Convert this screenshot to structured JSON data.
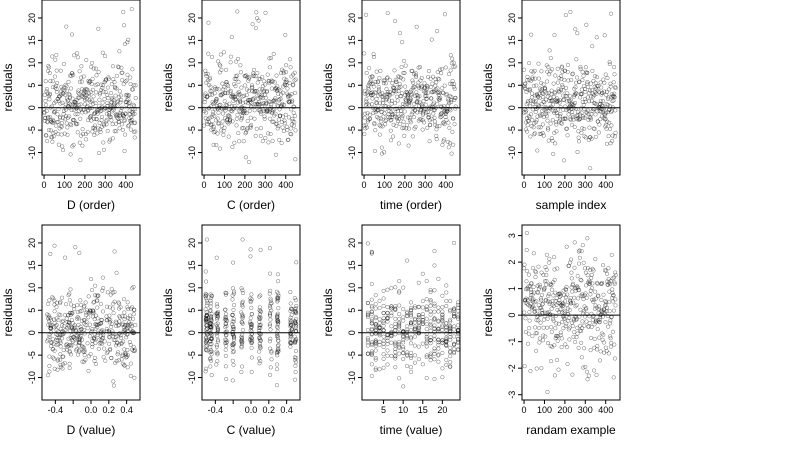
{
  "chart_data": [
    {
      "type": "scatter",
      "xlabel": "D (order)",
      "ylabel": "residuals",
      "xlim": [
        -10,
        470
      ],
      "ylim": [
        -15,
        24
      ],
      "xticks": [
        0,
        100,
        200,
        300,
        400
      ],
      "xtick_labels": [
        "0",
        "100",
        "200",
        "300",
        "400"
      ],
      "yticks": [
        -10,
        -5,
        0,
        5,
        10,
        15,
        20
      ],
      "ytick_labels": [
        "-10",
        "-5",
        "0",
        "5",
        "10",
        "15",
        "20"
      ],
      "hline": 0,
      "n_points": 450,
      "gen": {
        "dist": "index",
        "n": 450,
        "seed": 11,
        "min": 0,
        "max": 449
      }
    },
    {
      "type": "scatter",
      "xlabel": "C (order)",
      "ylabel": "residuals",
      "xlim": [
        -10,
        470
      ],
      "ylim": [
        -15,
        24
      ],
      "xticks": [
        0,
        100,
        200,
        300,
        400
      ],
      "xtick_labels": [
        "0",
        "100",
        "200",
        "300",
        "400"
      ],
      "yticks": [
        -10,
        -5,
        0,
        5,
        10,
        15,
        20
      ],
      "ytick_labels": [
        "-10",
        "-5",
        "0",
        "5",
        "10",
        "15",
        "20"
      ],
      "hline": 0,
      "n_points": 450,
      "gen": {
        "dist": "index",
        "n": 450,
        "seed": 23,
        "min": 0,
        "max": 449
      }
    },
    {
      "type": "scatter",
      "xlabel": "time (order)",
      "ylabel": "residuals",
      "xlim": [
        -10,
        470
      ],
      "ylim": [
        -15,
        24
      ],
      "xticks": [
        0,
        100,
        200,
        300,
        400
      ],
      "xtick_labels": [
        "0",
        "100",
        "200",
        "300",
        "400"
      ],
      "yticks": [
        -10,
        -5,
        0,
        5,
        10,
        15,
        20
      ],
      "ytick_labels": [
        "-10",
        "-5",
        "0",
        "5",
        "10",
        "15",
        "20"
      ],
      "hline": 0,
      "n_points": 450,
      "gen": {
        "dist": "index",
        "n": 450,
        "seed": 37,
        "min": 0,
        "max": 449
      }
    },
    {
      "type": "scatter",
      "xlabel": "sample index",
      "ylabel": "residuals",
      "xlim": [
        -10,
        470
      ],
      "ylim": [
        -15,
        24
      ],
      "xticks": [
        0,
        100,
        200,
        300,
        400
      ],
      "xtick_labels": [
        "0",
        "100",
        "200",
        "300",
        "400"
      ],
      "yticks": [
        -10,
        -5,
        0,
        5,
        10,
        15,
        20
      ],
      "ytick_labels": [
        "-10",
        "-5",
        "0",
        "5",
        "10",
        "15",
        "20"
      ],
      "hline": 0,
      "n_points": 450,
      "gen": {
        "dist": "index",
        "n": 450,
        "seed": 41,
        "min": 0,
        "max": 449
      }
    },
    {
      "type": "scatter",
      "xlabel": "D (value)",
      "ylabel": "residuals",
      "xlim": [
        -0.55,
        0.55
      ],
      "ylim": [
        -15,
        24
      ],
      "xticks": [
        -0.4,
        -0.2,
        0.0,
        0.2,
        0.4
      ],
      "xtick_labels": [
        "-0.4",
        "",
        "0.0",
        "0.2",
        "0.4"
      ],
      "yticks": [
        -10,
        -5,
        0,
        5,
        10,
        15,
        20
      ],
      "ytick_labels": [
        "-10",
        "-5",
        "0",
        "5",
        "10",
        "15",
        "20"
      ],
      "hline": 0,
      "n_points": 450,
      "gen": {
        "dist": "continuous",
        "n": 450,
        "seed": 53,
        "min": -0.5,
        "max": 0.5
      }
    },
    {
      "type": "scatter",
      "xlabel": "C (value)",
      "ylabel": "residuals",
      "xlim": [
        -0.55,
        0.55
      ],
      "ylim": [
        -15,
        24
      ],
      "xticks": [
        -0.4,
        -0.2,
        0.0,
        0.2,
        0.4
      ],
      "xtick_labels": [
        "-0.4",
        "",
        "0.0",
        "0.2",
        "0.4"
      ],
      "yticks": [
        -10,
        -5,
        0,
        5,
        10,
        15,
        20
      ],
      "ytick_labels": [
        "-10",
        "-5",
        "0",
        "5",
        "10",
        "15",
        "20"
      ],
      "hline": 0,
      "n_points": 450,
      "gen": {
        "dist": "clusters",
        "n": 450,
        "seed": 67,
        "centers": [
          -0.5,
          -0.45,
          -0.38,
          -0.28,
          -0.2,
          -0.1,
          0.0,
          0.1,
          0.22,
          0.3,
          0.45,
          0.5
        ],
        "jitter": 0.01
      }
    },
    {
      "type": "scatter",
      "xlabel": "time (value)",
      "ylabel": "residuals",
      "xlim": [
        -0.5,
        24.5
      ],
      "ylim": [
        -15,
        24
      ],
      "xticks": [
        5,
        10,
        15,
        20
      ],
      "xtick_labels": [
        "5",
        "10",
        "15",
        "20"
      ],
      "yticks": [
        -10,
        -5,
        0,
        5,
        10,
        15,
        20
      ],
      "ytick_labels": [
        "-10",
        "-5",
        "0",
        "5",
        "10",
        "15",
        "20"
      ],
      "hline": 0,
      "n_points": 450,
      "gen": {
        "dist": "integers",
        "n": 450,
        "seed": 79,
        "min": 1,
        "max": 24
      }
    },
    {
      "type": "scatter",
      "xlabel": "randam example",
      "ylabel": "residuals",
      "xlim": [
        -10,
        470
      ],
      "ylim": [
        -3.2,
        3.4
      ],
      "xticks": [
        0,
        100,
        200,
        300,
        400
      ],
      "xtick_labels": [
        "0",
        "100",
        "200",
        "300",
        "400"
      ],
      "yticks": [
        -3,
        -2,
        -1,
        0,
        1,
        2,
        3
      ],
      "ytick_labels": [
        "-3",
        "-2",
        "-1",
        "0",
        "1",
        "2",
        "3"
      ],
      "hline": 0,
      "n_points": 450,
      "gen": {
        "dist": "index",
        "n": 450,
        "seed": 97,
        "min": 0,
        "max": 449,
        "yscale": "unit"
      }
    }
  ]
}
